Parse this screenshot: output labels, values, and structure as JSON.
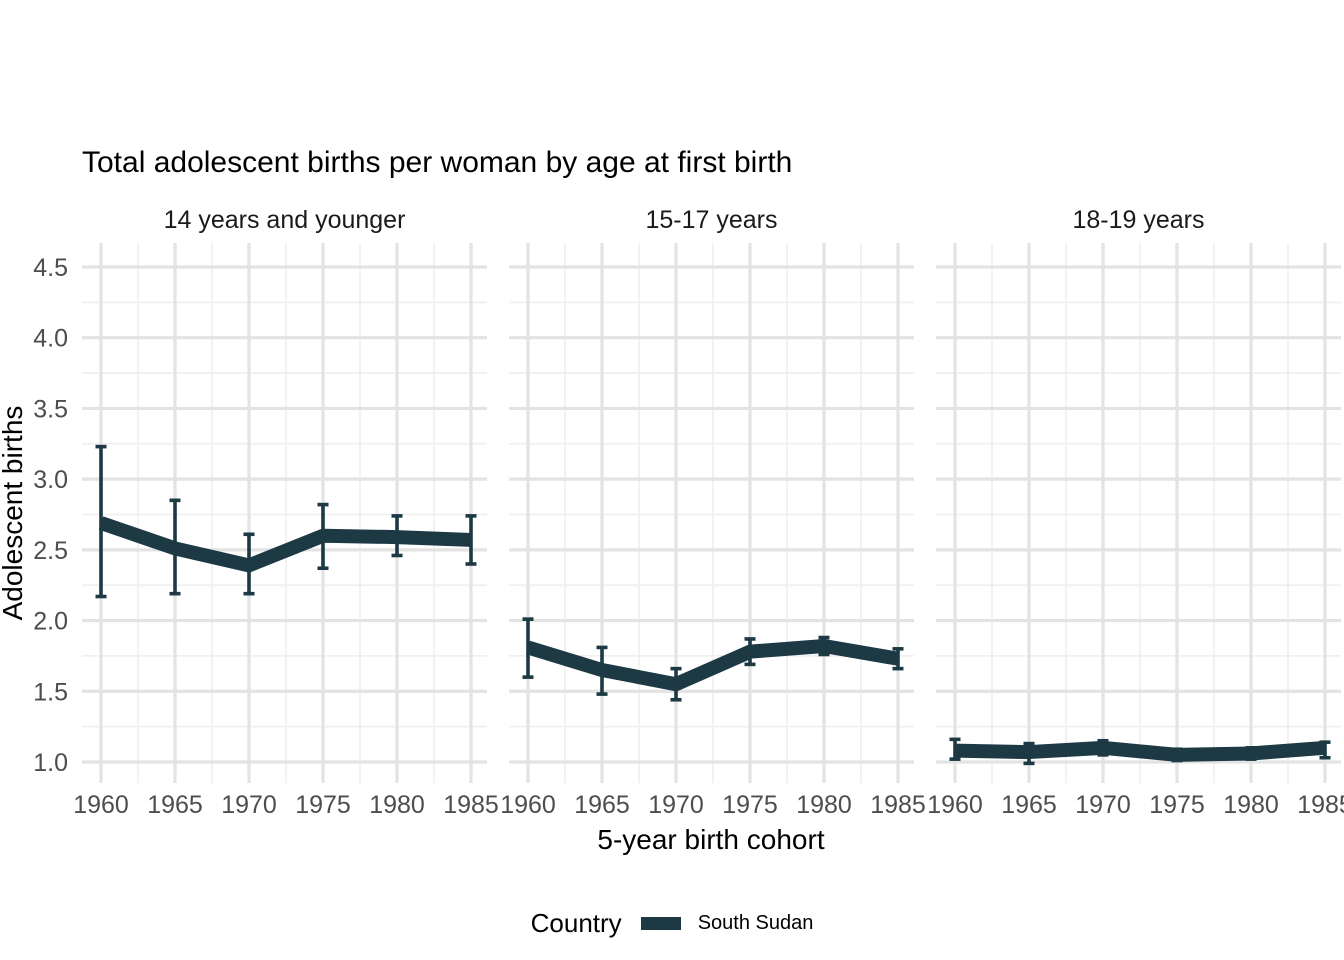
{
  "chart_data": {
    "type": "line",
    "error_bars": true,
    "title": "Total adolescent births per woman by age at first birth",
    "xlabel": "5-year birth cohort",
    "ylabel": "Adolescent births",
    "x_ticks": [
      "1960",
      "1965",
      "1970",
      "1975",
      "1980",
      "1985"
    ],
    "y_ticks": [
      "1.0",
      "1.5",
      "2.0",
      "2.5",
      "3.0",
      "3.5",
      "4.0",
      "4.5"
    ],
    "xlim": [
      1958.7,
      1986.3
    ],
    "ylim": [
      0.85,
      4.67
    ],
    "grid": "on",
    "legend": {
      "position": "bottom",
      "title": "Country",
      "entries": [
        {
          "label": "South Sudan",
          "color": "#1c3944"
        }
      ]
    },
    "colors": {
      "line": "#1c3944",
      "grid_major": "#e3e3e3",
      "grid_minor": "#f0f0f0",
      "axis_text": "#4d4d4d",
      "text": "#1a1a1a"
    },
    "facets": [
      {
        "label": "14 years and younger",
        "series": "South Sudan",
        "x": [
          1960,
          1965,
          1970,
          1975,
          1980,
          1985
        ],
        "y": [
          2.69,
          2.51,
          2.39,
          2.6,
          2.59,
          2.57
        ],
        "y_lo": [
          2.17,
          2.19,
          2.19,
          2.37,
          2.46,
          2.4
        ],
        "y_hi": [
          3.23,
          2.85,
          2.61,
          2.82,
          2.74,
          2.74
        ]
      },
      {
        "label": "15-17 years",
        "series": "South Sudan",
        "x": [
          1960,
          1965,
          1970,
          1975,
          1980,
          1985
        ],
        "y": [
          1.81,
          1.65,
          1.55,
          1.78,
          1.82,
          1.73
        ],
        "y_lo": [
          1.6,
          1.48,
          1.44,
          1.69,
          1.76,
          1.66
        ],
        "y_hi": [
          2.01,
          1.81,
          1.66,
          1.87,
          1.88,
          1.8
        ]
      },
      {
        "label": "18-19 years",
        "series": "South Sudan",
        "x": [
          1960,
          1965,
          1970,
          1975,
          1980,
          1985
        ],
        "y": [
          1.08,
          1.07,
          1.1,
          1.05,
          1.06,
          1.1
        ],
        "y_lo": [
          1.02,
          0.99,
          1.05,
          1.01,
          1.02,
          1.03
        ],
        "y_hi": [
          1.16,
          1.13,
          1.15,
          1.09,
          1.1,
          1.14
        ]
      }
    ]
  }
}
